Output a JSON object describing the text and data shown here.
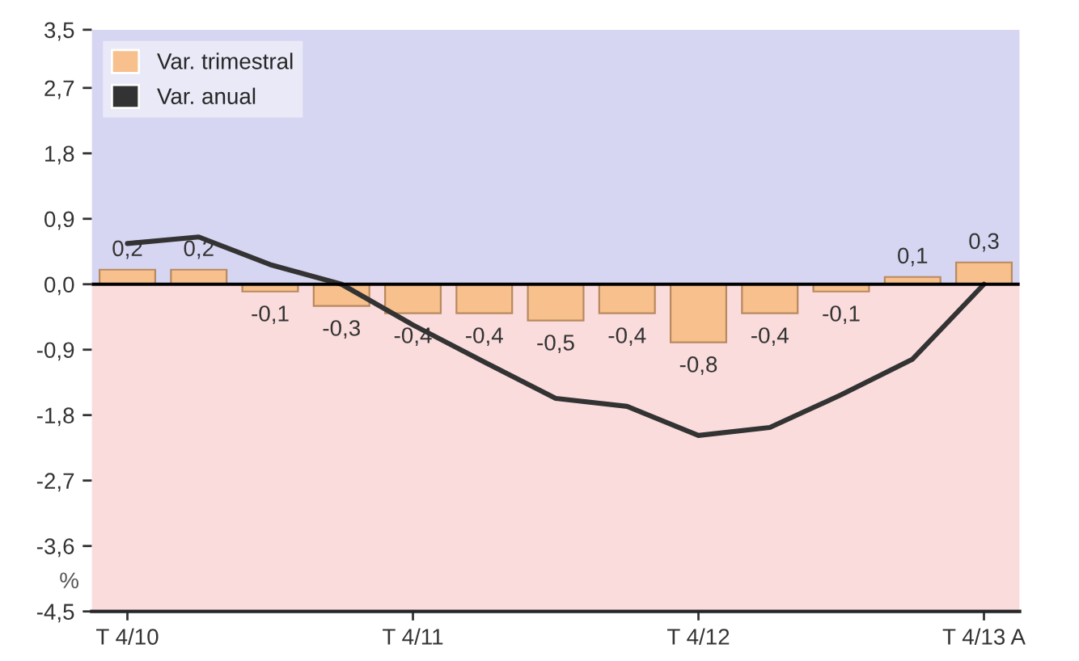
{
  "chart_data": {
    "type": "bar",
    "categories": [
      "T 4/10",
      null,
      null,
      null,
      "T 4/11",
      null,
      null,
      null,
      "T 4/12",
      null,
      null,
      null,
      "T 4/13 A"
    ],
    "series": [
      {
        "name": "Var. trimestral",
        "color": "#f7c08c",
        "values": [
          0.2,
          0.2,
          -0.1,
          -0.3,
          -0.4,
          -0.4,
          -0.5,
          -0.4,
          -0.8,
          -0.4,
          -0.1,
          0.1,
          0.3
        ],
        "value_labels": [
          "0,2",
          "0,2",
          "-0,1",
          "-0,3",
          "-0,4",
          "-0,4",
          "-0,5",
          "-0,4",
          "-0,8",
          "-0,4",
          "-0,1",
          "0,1",
          "0,3"
        ]
      },
      {
        "name": "Var. anual",
        "type": "line",
        "color": "#333333",
        "values": [
          0.56,
          0.65,
          0.27,
          0.0,
          -0.56,
          -1.07,
          -1.57,
          -1.68,
          -2.08,
          -1.97,
          -1.52,
          -1.03,
          0.0
        ]
      }
    ],
    "ylim": [
      -4.5,
      3.5
    ],
    "yticks": [
      {
        "value": 3.5,
        "label": "3,5"
      },
      {
        "value": 2.7,
        "label": "2,7"
      },
      {
        "value": 1.8,
        "label": "1,8"
      },
      {
        "value": 0.9,
        "label": "0,9"
      },
      {
        "value": 0.0,
        "label": "0,0"
      },
      {
        "value": -0.9,
        "label": "-0,9"
      },
      {
        "value": -1.8,
        "label": "-1,8"
      },
      {
        "value": -2.7,
        "label": "-2,7"
      },
      {
        "value": -3.6,
        "label": "-3,6"
      },
      {
        "value": -4.5,
        "label": "-4,5"
      }
    ],
    "bands": [
      {
        "axis": "y",
        "from": 0,
        "to": 3.5,
        "color": "#d6d6f3"
      },
      {
        "axis": "y",
        "from": -4.5,
        "to": 0,
        "color": "#fbdcdc"
      }
    ],
    "ref_lines": [
      {
        "axis": "y",
        "value": 0,
        "color": "#000000"
      }
    ],
    "annotations": [
      "%"
    ],
    "legend": "top left",
    "grid": false
  }
}
